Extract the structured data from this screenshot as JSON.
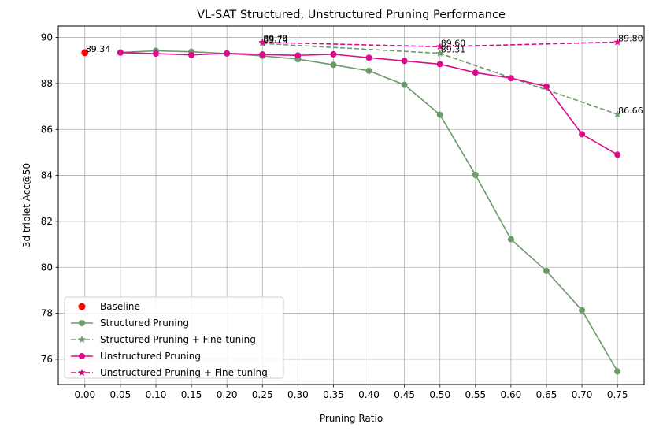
{
  "chart_data": {
    "type": "line",
    "title": "VL-SAT Structured, Unstructured Pruning Performance",
    "xlabel": "Pruning Ratio",
    "ylabel": "3d triplet Acc@50",
    "x_ticks": [
      "0.00",
      "0.05",
      "0.10",
      "0.15",
      "0.20",
      "0.25",
      "0.30",
      "0.35",
      "0.40",
      "0.45",
      "0.50",
      "0.55",
      "0.60",
      "0.65",
      "0.70",
      "0.75"
    ],
    "y_ticks": [
      "76",
      "78",
      "80",
      "82",
      "84",
      "86",
      "88",
      "90"
    ],
    "xlim": [
      -0.0375,
      0.7875
    ],
    "ylim": [
      74.9,
      90.5
    ],
    "grid": true,
    "legend_position": "lower-left",
    "series": [
      {
        "name": "Baseline",
        "kind": "scatter",
        "color": "#ff0000",
        "marker": "circle",
        "x": [
          0.0
        ],
        "y": [
          89.34
        ]
      },
      {
        "name": "Structured Pruning",
        "kind": "line",
        "color": "#6a9a6a",
        "marker": "circle",
        "dash": false,
        "x": [
          0.05,
          0.1,
          0.15,
          0.2,
          0.25,
          0.3,
          0.35,
          0.4,
          0.45,
          0.5,
          0.55,
          0.6,
          0.65,
          0.7,
          0.75
        ],
        "y": [
          89.35,
          89.42,
          89.38,
          89.3,
          89.2,
          89.06,
          88.81,
          88.55,
          87.94,
          86.64,
          84.02,
          81.22,
          79.84,
          78.13,
          75.47
        ]
      },
      {
        "name": "Structured Pruning + Fine-tuning",
        "kind": "line",
        "color": "#6a9a6a",
        "marker": "star",
        "dash": true,
        "x": [
          0.25,
          0.5,
          0.75
        ],
        "y": [
          89.74,
          89.31,
          86.66
        ]
      },
      {
        "name": "Unstructured Pruning",
        "kind": "line",
        "color": "#dd0a8b",
        "marker": "circle",
        "dash": false,
        "x": [
          0.05,
          0.1,
          0.15,
          0.2,
          0.25,
          0.3,
          0.35,
          0.4,
          0.45,
          0.5,
          0.55,
          0.6,
          0.65,
          0.7,
          0.75
        ],
        "y": [
          89.34,
          89.3,
          89.24,
          89.31,
          89.26,
          89.22,
          89.27,
          89.12,
          88.98,
          88.84,
          88.47,
          88.23,
          87.87,
          85.79,
          84.9
        ]
      },
      {
        "name": "Unstructured Pruning + Fine-tuning",
        "kind": "line",
        "color": "#dd0a8b",
        "marker": "star",
        "dash": true,
        "x": [
          0.25,
          0.5,
          0.75
        ],
        "y": [
          89.79,
          89.6,
          89.8
        ]
      }
    ],
    "annotations": [
      {
        "text": "89.34",
        "x": 0.0,
        "y": 89.34
      },
      {
        "text": "89.79",
        "x": 0.25,
        "y": 89.79
      },
      {
        "text": "89.74",
        "x": 0.25,
        "y": 89.74
      },
      {
        "text": "89.60",
        "x": 0.5,
        "y": 89.6
      },
      {
        "text": "89.31",
        "x": 0.5,
        "y": 89.31
      },
      {
        "text": "89.80",
        "x": 0.75,
        "y": 89.8
      },
      {
        "text": "86.66",
        "x": 0.75,
        "y": 86.66
      }
    ]
  }
}
